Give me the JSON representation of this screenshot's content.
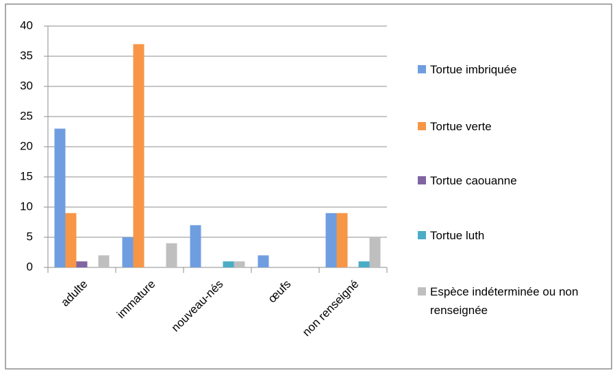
{
  "chart_data": {
    "type": "bar",
    "categories": [
      "adulte",
      "immature",
      "nouveau-nés",
      "œufs",
      "non renseigné"
    ],
    "series": [
      {
        "name": "Tortue imbriquée",
        "color": "#6f9ee0",
        "values": [
          23,
          5,
          7,
          2,
          9
        ]
      },
      {
        "name": "Tortue verte",
        "color": "#f79646",
        "values": [
          9,
          37,
          0,
          0,
          9
        ]
      },
      {
        "name": "Tortue caouanne",
        "color": "#8064a2",
        "values": [
          1,
          0,
          0,
          0,
          0
        ]
      },
      {
        "name": "Tortue luth",
        "color": "#4bacc6",
        "values": [
          0,
          0,
          1,
          0,
          1
        ]
      },
      {
        "name": "Espèce indéterminée ou non renseignée",
        "color": "#bfbfbf",
        "values": [
          2,
          4,
          1,
          0,
          5
        ]
      }
    ],
    "ylim": [
      0,
      40
    ],
    "yticks": [
      0,
      5,
      10,
      15,
      20,
      25,
      30,
      35,
      40
    ],
    "grid": true,
    "legend": "right"
  }
}
